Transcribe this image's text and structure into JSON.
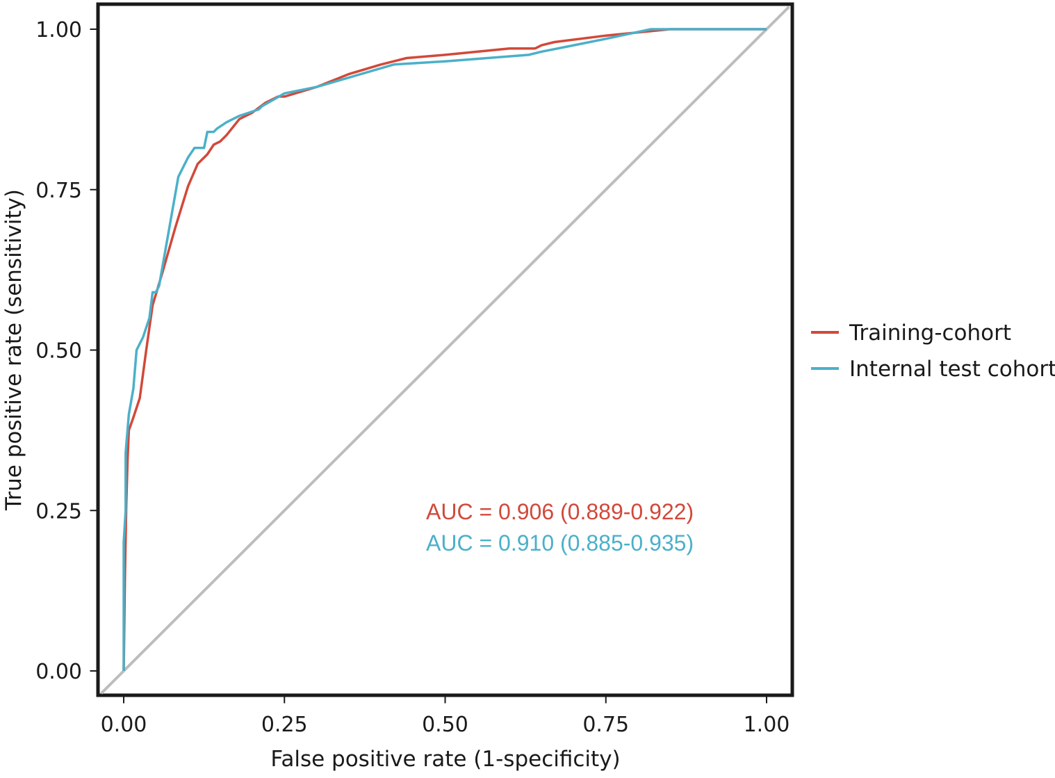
{
  "chart_data": {
    "type": "line",
    "xlabel": "False positive rate (1-specificity)",
    "ylabel": "True positive rate (sensitivity)",
    "xlim": [
      0,
      1
    ],
    "ylim": [
      0,
      1
    ],
    "x_ticks": [
      "0.00",
      "0.25",
      "0.50",
      "0.75",
      "1.00"
    ],
    "y_ticks": [
      "0.00",
      "0.25",
      "0.50",
      "0.75",
      "1.00"
    ],
    "x_tick_values": [
      0,
      0.25,
      0.5,
      0.75,
      1
    ],
    "y_tick_values": [
      0,
      0.25,
      0.5,
      0.75,
      1
    ],
    "grid": false,
    "legend_position": "right",
    "reference_line": {
      "x": [
        0,
        1
      ],
      "y": [
        0,
        1
      ],
      "color": "#bdbdbd"
    },
    "series": [
      {
        "name": "Training-cohort",
        "color": "#d1493a",
        "auc_label": "AUC = 0.906 (0.889-0.922)",
        "x": [
          0,
          0.002,
          0.004,
          0.006,
          0.008,
          0.015,
          0.025,
          0.035,
          0.045,
          0.06,
          0.08,
          0.1,
          0.115,
          0.13,
          0.14,
          0.15,
          0.16,
          0.18,
          0.2,
          0.22,
          0.24,
          0.25,
          0.3,
          0.35,
          0.4,
          0.42,
          0.44,
          0.5,
          0.6,
          0.64,
          0.65,
          0.67,
          0.75,
          0.85,
          0.9,
          1.0
        ],
        "y": [
          0,
          0.15,
          0.26,
          0.33,
          0.375,
          0.395,
          0.425,
          0.5,
          0.57,
          0.62,
          0.69,
          0.755,
          0.79,
          0.805,
          0.82,
          0.825,
          0.835,
          0.86,
          0.87,
          0.885,
          0.895,
          0.895,
          0.91,
          0.93,
          0.945,
          0.95,
          0.955,
          0.96,
          0.97,
          0.97,
          0.975,
          0.98,
          0.99,
          1.0,
          1.0,
          1.0
        ]
      },
      {
        "name": "Internal test cohort",
        "color": "#4bb0c9",
        "auc_label": "AUC = 0.910 (0.885-0.935)",
        "x": [
          0,
          0,
          0.003,
          0.003,
          0.008,
          0.015,
          0.02,
          0.03,
          0.04,
          0.045,
          0.05,
          0.055,
          0.085,
          0.1,
          0.11,
          0.115,
          0.125,
          0.13,
          0.14,
          0.145,
          0.16,
          0.18,
          0.21,
          0.215,
          0.25,
          0.3,
          0.42,
          0.5,
          0.63,
          0.65,
          0.7,
          0.75,
          0.82,
          0.88,
          1.0
        ],
        "y": [
          0,
          0.2,
          0.25,
          0.34,
          0.4,
          0.44,
          0.5,
          0.52,
          0.55,
          0.59,
          0.59,
          0.6,
          0.77,
          0.8,
          0.815,
          0.815,
          0.815,
          0.84,
          0.84,
          0.845,
          0.855,
          0.865,
          0.875,
          0.88,
          0.9,
          0.91,
          0.945,
          0.95,
          0.96,
          0.965,
          0.975,
          0.985,
          1.0,
          1.0,
          1.0
        ]
      }
    ]
  }
}
